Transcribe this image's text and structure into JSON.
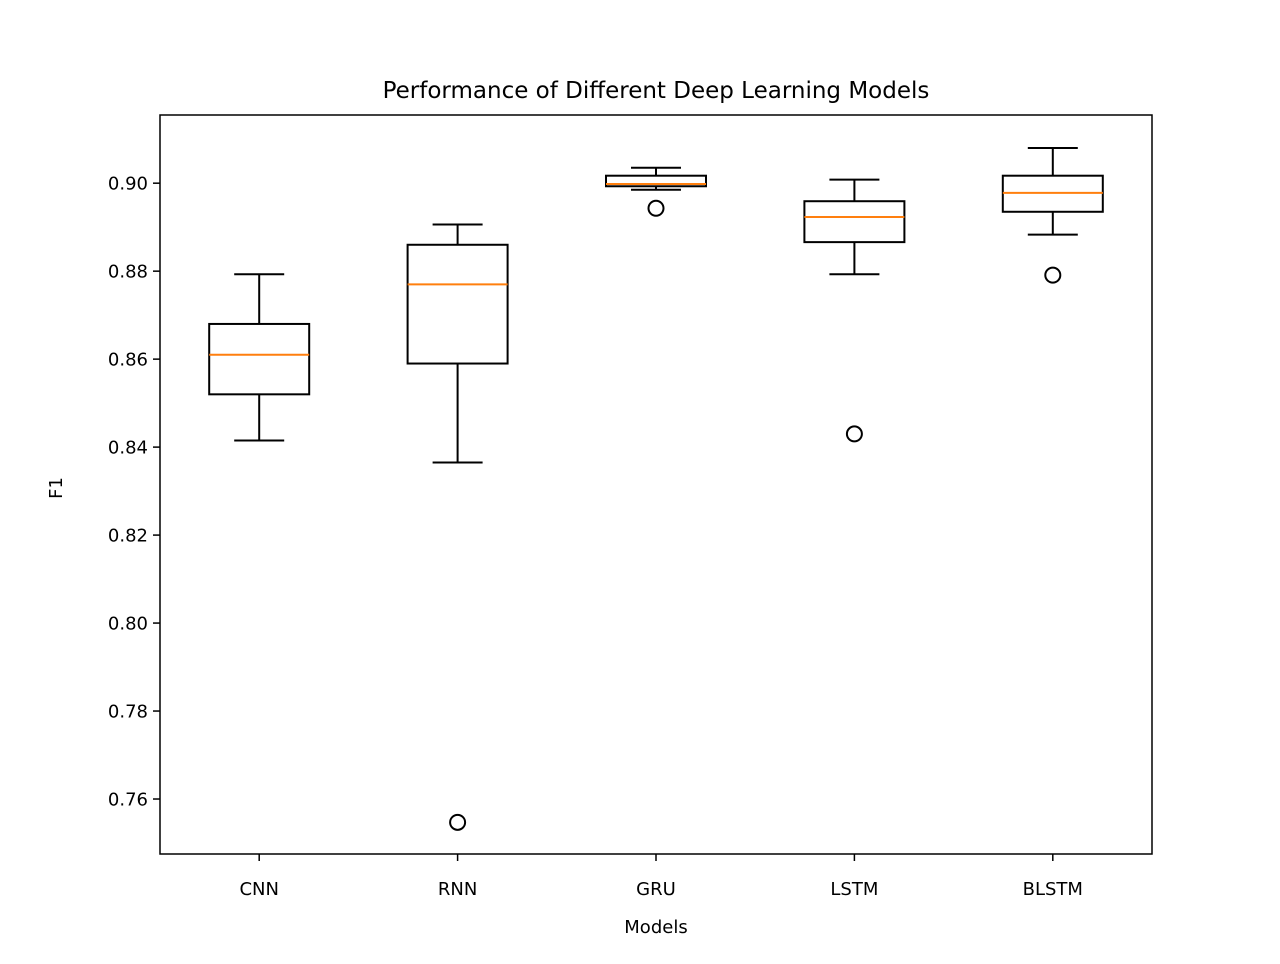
{
  "chart_data": {
    "type": "box",
    "title": "Performance of Different Deep Learning Models",
    "xlabel": "Models",
    "ylabel": "F1",
    "ylim": [
      0.7475,
      0.9155
    ],
    "yticks": [
      0.76,
      0.78,
      0.8,
      0.82,
      0.84,
      0.86,
      0.88,
      0.9
    ],
    "ytick_labels": [
      "0.76",
      "0.78",
      "0.80",
      "0.82",
      "0.84",
      "0.86",
      "0.88",
      "0.90"
    ],
    "categories": [
      "CNN",
      "RNN",
      "GRU",
      "LSTM",
      "BLSTM"
    ],
    "grid": false,
    "colors": {
      "box": "#000000",
      "median": "#ff7f0e",
      "outlier": "#000000",
      "axes": "#000000"
    },
    "boxes": [
      {
        "name": "CNN",
        "whisker_low": 0.8415,
        "q1": 0.852,
        "median": 0.861,
        "q3": 0.868,
        "whisker_high": 0.8793,
        "outliers": []
      },
      {
        "name": "RNN",
        "whisker_low": 0.8365,
        "q1": 0.859,
        "median": 0.877,
        "q3": 0.886,
        "whisker_high": 0.8906,
        "outliers": [
          0.7547
        ]
      },
      {
        "name": "GRU",
        "whisker_low": 0.8985,
        "q1": 0.8993,
        "median": 0.8998,
        "q3": 0.9017,
        "whisker_high": 0.9035,
        "outliers": [
          0.8943
        ]
      },
      {
        "name": "LSTM",
        "whisker_low": 0.8793,
        "q1": 0.8866,
        "median": 0.8923,
        "q3": 0.8959,
        "whisker_high": 0.9008,
        "outliers": [
          0.843
        ]
      },
      {
        "name": "BLSTM",
        "whisker_low": 0.8883,
        "q1": 0.8935,
        "median": 0.8978,
        "q3": 0.9017,
        "whisker_high": 0.908,
        "outliers": [
          0.8791
        ]
      }
    ]
  }
}
